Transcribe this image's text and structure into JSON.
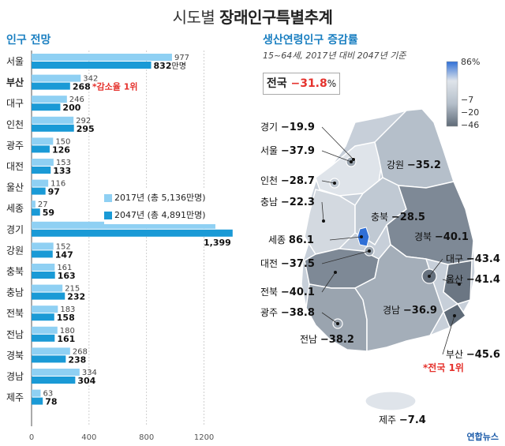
{
  "title": {
    "main": "시도별",
    "bold": "장래인구특별추계"
  },
  "left": {
    "section_title": "인구 전망",
    "unit": "만명",
    "note": "*감소율 1위",
    "legend": [
      {
        "label": "2017년 (총 5,136만명)",
        "color": "#8fd0f3"
      },
      {
        "label": "2047년 (총 4,891만명)",
        "color": "#1a9ad6"
      }
    ]
  },
  "right": {
    "section_title": "생산연령인구 증감률",
    "subtitle": "15~64세, 2017년 대비 2047년 기준",
    "national_label": "전국",
    "national_value": "−31.8",
    "national_unit": "%",
    "scale_labels": [
      "86%",
      "−7",
      "−20",
      "−46"
    ],
    "note": "*전국 1위",
    "credit": "연합뉴스"
  },
  "chart_data": [
    {
      "type": "bar",
      "categories": [
        "서울",
        "부산",
        "대구",
        "인천",
        "광주",
        "대전",
        "울산",
        "세종",
        "경기",
        "강원",
        "충북",
        "충남",
        "전북",
        "전남",
        "경북",
        "경남",
        "제주"
      ],
      "series": [
        {
          "name": "2017년 (총 5,136만명)",
          "values": [
            977,
            342,
            246,
            292,
            150,
            153,
            116,
            27,
            1279,
            152,
            161,
            215,
            183,
            180,
            268,
            334,
            63
          ]
        },
        {
          "name": "2047년 (총 4,891만명)",
          "values": [
            832,
            268,
            200,
            295,
            126,
            133,
            97,
            59,
            1399,
            147,
            163,
            232,
            158,
            161,
            238,
            304,
            78
          ]
        }
      ],
      "xlim": [
        0,
        1400
      ],
      "ticks": [
        0,
        400,
        800,
        1200
      ]
    },
    {
      "type": "table",
      "regions": [
        {
          "name": "경기",
          "value": "−19.9"
        },
        {
          "name": "서울",
          "value": "−37.9"
        },
        {
          "name": "인천",
          "value": "−28.7"
        },
        {
          "name": "충남",
          "value": "−22.3"
        },
        {
          "name": "세종",
          "value": "86.1"
        },
        {
          "name": "대전",
          "value": "−37.5"
        },
        {
          "name": "전북",
          "value": "−40.1"
        },
        {
          "name": "광주",
          "value": "−38.8"
        },
        {
          "name": "전남",
          "value": "−38.2"
        },
        {
          "name": "강원",
          "value": "−35.2"
        },
        {
          "name": "충북",
          "value": "−28.5"
        },
        {
          "name": "경북",
          "value": "−40.1"
        },
        {
          "name": "대구",
          "value": "−43.4"
        },
        {
          "name": "울산",
          "value": "−41.4"
        },
        {
          "name": "경남",
          "value": "−36.9"
        },
        {
          "name": "부산",
          "value": "−45.6"
        },
        {
          "name": "제주",
          "value": "−7.4"
        }
      ],
      "colors": {
        "high": "#2f6fd6",
        "mid": "#c7cfd9",
        "low": "#5f6b78"
      }
    }
  ]
}
